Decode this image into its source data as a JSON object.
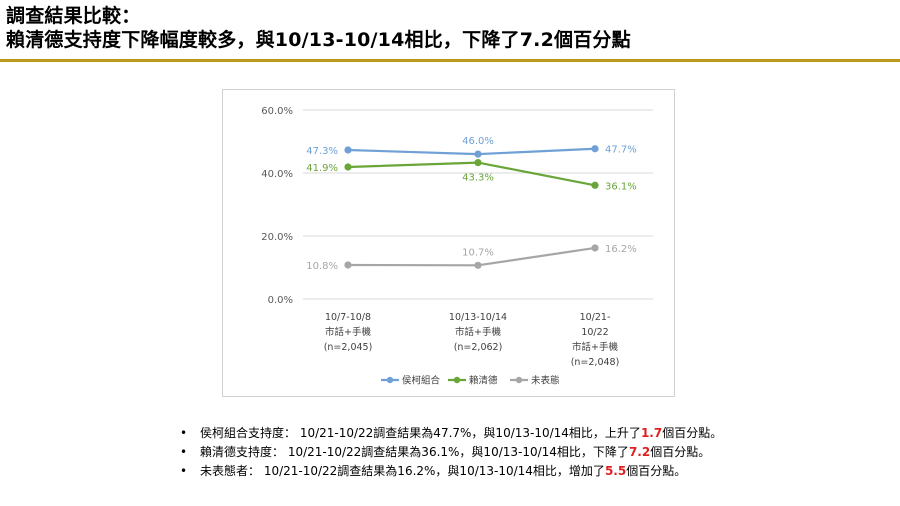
{
  "page": {
    "title_line1": "調查結果比較：",
    "title_line2": "賴清德支持度下降幅度較多，與10/13-10/14相比，下降了7.2個百分點"
  },
  "chart_data": {
    "type": "line",
    "categories": [
      [
        "10/7-10/8",
        "市話+手機",
        "(n=2,045)"
      ],
      [
        "10/13-10/14",
        "市話+手機",
        "(n=2,062)"
      ],
      [
        "10/21-",
        "10/22",
        "市話+手機",
        "(n=2,048)"
      ]
    ],
    "y_ticks": [
      "0.0%",
      "20.0%",
      "40.0%",
      "60.0%"
    ],
    "ylim": [
      0,
      60
    ],
    "grid": true,
    "legend_position": "bottom",
    "series": [
      {
        "name": "侯柯組合",
        "color": "#6fa0d6",
        "values": [
          47.3,
          46.0,
          47.7
        ],
        "labels": [
          "47.3%",
          "46.0%",
          "47.7%"
        ],
        "label_pos": [
          "left",
          "above",
          "right"
        ]
      },
      {
        "name": "賴清德",
        "color": "#6aa53a",
        "values": [
          41.9,
          43.3,
          36.1
        ],
        "labels": [
          "41.9%",
          "43.3%",
          "36.1%"
        ],
        "label_pos": [
          "left",
          "below",
          "right"
        ]
      },
      {
        "name": "未表態",
        "color": "#a6a6a6",
        "values": [
          10.8,
          10.7,
          16.2
        ],
        "labels": [
          "10.8%",
          "10.7%",
          "16.2%"
        ],
        "label_pos": [
          "left",
          "above",
          "right"
        ]
      }
    ]
  },
  "bullets": [
    {
      "marker": "•",
      "text_before": "侯柯組合支持度： 10/21-10/22調查結果為47.7%，與10/13-10/14相比，上升了",
      "highlight": "1.7",
      "text_after": "個百分點。"
    },
    {
      "marker": "•",
      "text_before": "賴清德支持度： 10/21-10/22調查結果為36.1%，與10/13-10/14相比，下降了",
      "highlight": "7.2",
      "text_after": "個百分點。"
    },
    {
      "marker": "•",
      "text_before": "未表態者： 10/21-10/22調查結果為16.2%，與10/13-10/14相比，增加了",
      "highlight": "5.5",
      "text_after": "個百分點。"
    }
  ],
  "colors": {
    "title_rule": "#b99a1d",
    "highlight": "#e02020",
    "grid": "#d9d9d9"
  }
}
